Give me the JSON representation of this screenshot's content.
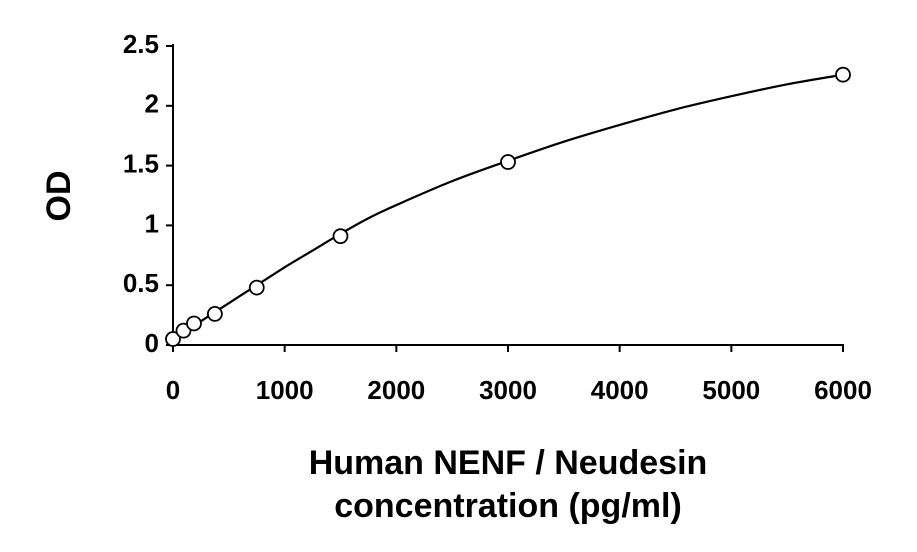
{
  "chart_data": {
    "type": "scatter",
    "xlabel_line1": "Human NENF / Neudesin",
    "xlabel_line2": "concentration (pg/ml)",
    "ylabel": "OD",
    "xlim": [
      0,
      6000
    ],
    "ylim": [
      0,
      2.5
    ],
    "x_ticks": [
      0,
      1000,
      2000,
      3000,
      4000,
      5000,
      6000
    ],
    "x_tick_labels": [
      "0",
      "1000",
      "2000",
      "3000",
      "4000",
      "5000",
      "6000"
    ],
    "y_ticks": [
      0,
      0.5,
      1,
      1.5,
      2,
      2.5
    ],
    "y_tick_labels": [
      "0",
      "0.5",
      "1",
      "1.5",
      "2",
      "2.5"
    ],
    "grid": false,
    "legend": "none",
    "series": [
      {
        "x": [
          0,
          94,
          188,
          375,
          750,
          1500,
          3000,
          6000
        ],
        "y": [
          0.05,
          0.12,
          0.18,
          0.26,
          0.48,
          0.91,
          1.53,
          2.26
        ]
      }
    ],
    "fit_curve": {
      "x": [
        0,
        200,
        400,
        600,
        800,
        1000,
        1250,
        1500,
        1750,
        2000,
        2500,
        3000,
        3500,
        4000,
        4500,
        5000,
        5500,
        6000
      ],
      "y": [
        0.06,
        0.17,
        0.29,
        0.41,
        0.53,
        0.65,
        0.79,
        0.93,
        1.06,
        1.17,
        1.37,
        1.54,
        1.7,
        1.84,
        1.97,
        2.08,
        2.18,
        2.26
      ]
    }
  }
}
